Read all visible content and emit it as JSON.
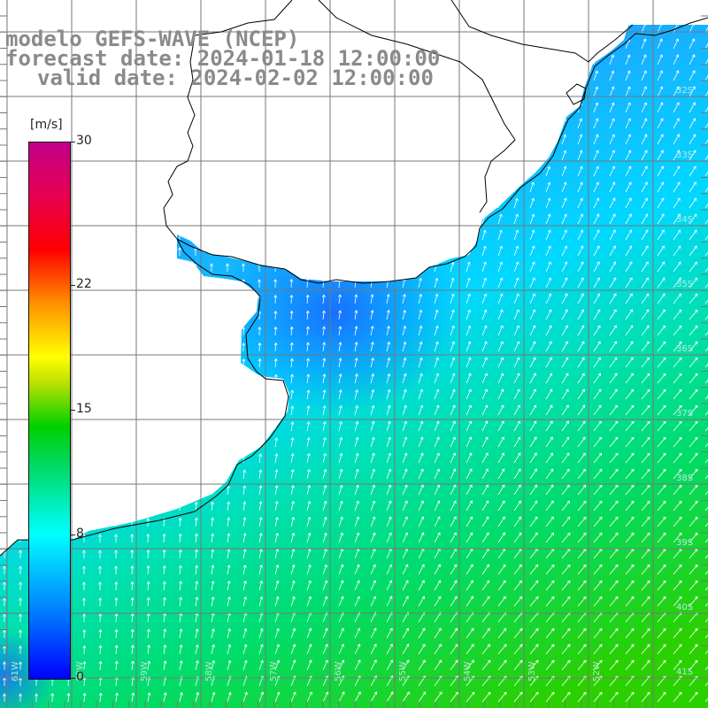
{
  "title": {
    "model": "modelo GEFS-WAVE (NCEP)",
    "forecast": "forecast date: 2024-01-18 12:00:00",
    "valid": "valid date: 2024-02-02 12:00:00"
  },
  "colorbar": {
    "unit": "[m/s]",
    "min": 0,
    "max": 30,
    "ticks": [
      "30",
      "22",
      "15",
      "8",
      "0"
    ],
    "tick_values": [
      30,
      22,
      15,
      8,
      0
    ]
  },
  "axes": {
    "lat_labels": [
      "32S",
      "33S",
      "34S",
      "35S",
      "36S",
      "37S",
      "38S",
      "39S",
      "40S",
      "41S"
    ],
    "lon_labels": [
      "61W",
      "60W",
      "59W",
      "58W",
      "57W",
      "56W",
      "55W",
      "54W",
      "53W",
      "52W"
    ]
  },
  "colors": {
    "land": "#ffffff",
    "grid": "#777777",
    "coast": "#000000",
    "arrows": "#ffffff",
    "title": "#8a8a8a"
  }
}
